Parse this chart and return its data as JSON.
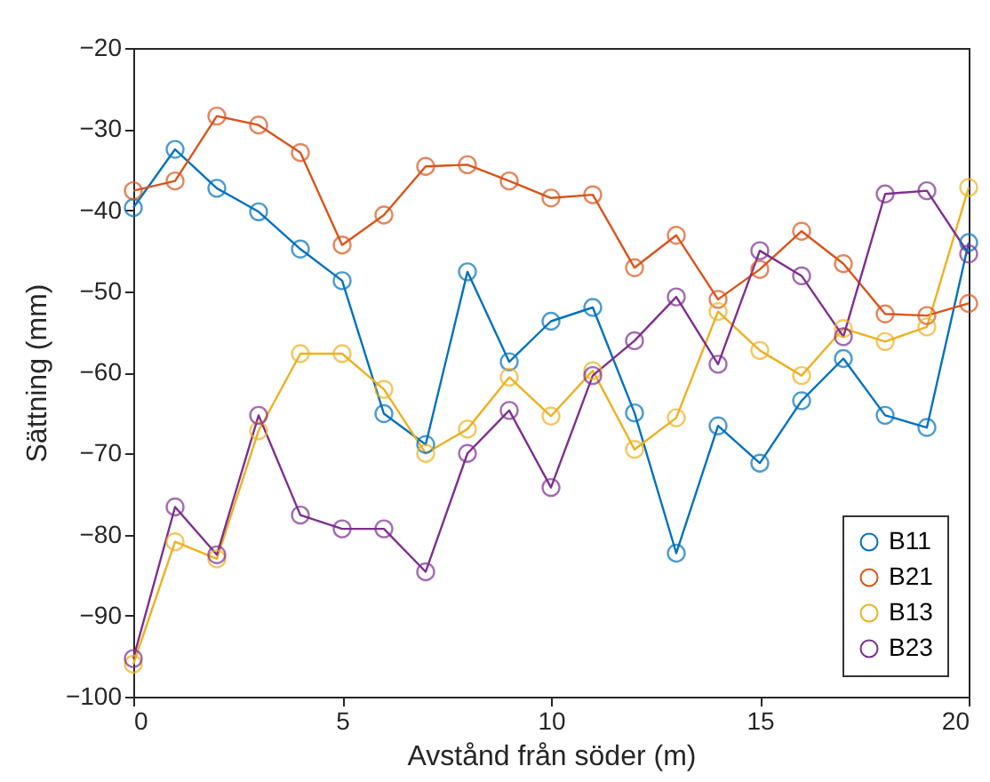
{
  "chart_data": {
    "type": "line",
    "xlabel": "Avstånd från söder (m)",
    "ylabel": "Sättning (mm)",
    "x": [
      0,
      1,
      2,
      3,
      4,
      5,
      6,
      7,
      8,
      9,
      10,
      11,
      12,
      13,
      14,
      15,
      16,
      17,
      18,
      19,
      20
    ],
    "xlim": [
      0,
      20
    ],
    "xticks": [
      0,
      5,
      10,
      15,
      20
    ],
    "ylim": [
      -100,
      -20
    ],
    "yticks": [
      -100,
      -90,
      -80,
      -70,
      -60,
      -50,
      -40,
      -30,
      -20
    ],
    "marker": "circle",
    "line_style": "solid",
    "legend": "bottom right",
    "grid": false,
    "series": [
      {
        "name": "B11",
        "color": "#0072bd",
        "values": [
          -39.7,
          -32.5,
          -37.3,
          -40.2,
          -44.8,
          -48.7,
          -65.1,
          -68.9,
          -47.6,
          -58.7,
          -53.7,
          -52,
          -65,
          -82.3,
          -66.6,
          -71.2,
          -63.5,
          -58.3,
          -65.3,
          -66.8,
          -44
        ]
      },
      {
        "name": "B21",
        "color": "#d95319",
        "values": [
          -37.6,
          -36.4,
          -28.4,
          -29.5,
          -32.9,
          -44.3,
          -40.6,
          -34.6,
          -34.4,
          -36.4,
          -38.5,
          -38.1,
          -47.1,
          -43.1,
          -51,
          -47.3,
          -42.6,
          -46.6,
          -52.8,
          -53,
          -51.5
        ]
      },
      {
        "name": "B13",
        "color": "#edb120",
        "values": [
          -96,
          -80.9,
          -83,
          -67.2,
          -57.7,
          -57.7,
          -62.1,
          -70,
          -67,
          -60.6,
          -65.4,
          -59.8,
          -69.5,
          -65.6,
          -52.5,
          -57.3,
          -60.4,
          -54.6,
          -56.2,
          -54.4,
          -37.2
        ]
      },
      {
        "name": "B23",
        "color": "#7e2f8e",
        "values": [
          -95.3,
          -76.6,
          -82.5,
          -65.3,
          -77.6,
          -79.3,
          -79.3,
          -84.6,
          -70,
          -64.7,
          -74.2,
          -60.4,
          -56.1,
          -50.7,
          -59,
          -45,
          -48.1,
          -55.6,
          -38,
          -37.6,
          -45.4
        ]
      }
    ]
  }
}
